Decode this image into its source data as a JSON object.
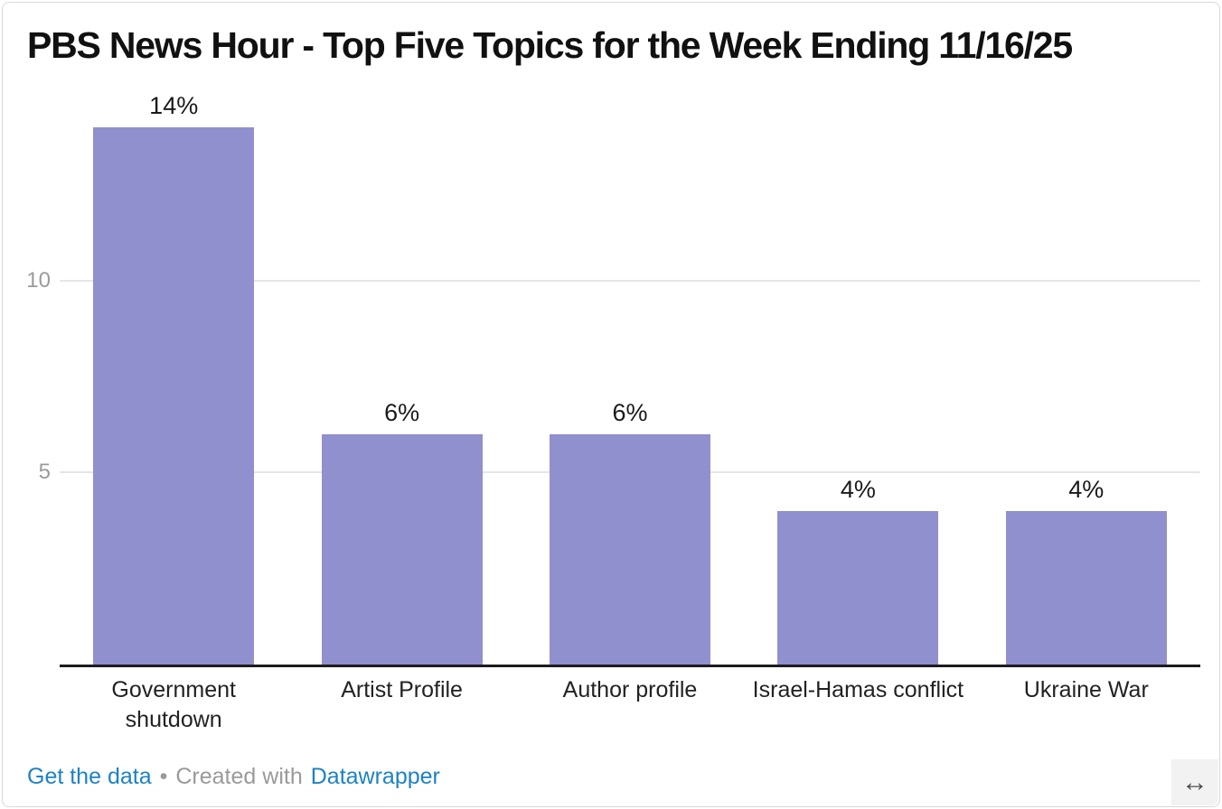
{
  "header": {
    "title": "PBS News Hour - Top Five Topics for the Week Ending 11/16/25"
  },
  "chart_data": {
    "type": "bar",
    "title": "PBS News Hour - Top Five Topics for the Week Ending 11/16/25",
    "categories": [
      "Government shutdown",
      "Artist Profile",
      "Author profile",
      "Israel-Hamas conflict",
      "Ukraine War"
    ],
    "values": [
      14,
      6,
      6,
      4,
      4
    ],
    "value_labels": [
      "14%",
      "6%",
      "6%",
      "4%",
      "4%"
    ],
    "x_tick_labels": [
      "Government\nshutdown",
      "Artist Profile",
      "Author profile",
      "Israel-Hamas conflict",
      "Ukraine War"
    ],
    "y_ticks": [
      5,
      10
    ],
    "ylim": [
      0,
      15
    ],
    "unit": "%",
    "xlabel": "",
    "ylabel": "",
    "grid": "horizontal",
    "legend": "none",
    "bar_color": "#9090ce"
  },
  "footer": {
    "get_data_label": "Get the data",
    "separator": "•",
    "created_with": "Created with",
    "datawrapper_label": "Datawrapper"
  },
  "icons": {
    "resize_handle_glyph": "↔"
  },
  "colors": {
    "bar": "#9090ce",
    "link_blue": "#1d82c4",
    "grid": "#e6e6e6",
    "axis": "#1c1c1f",
    "tick_text": "#9b9b9b",
    "muted_text": "#9a9a9a",
    "frame_border": "#d9d9d9"
  }
}
